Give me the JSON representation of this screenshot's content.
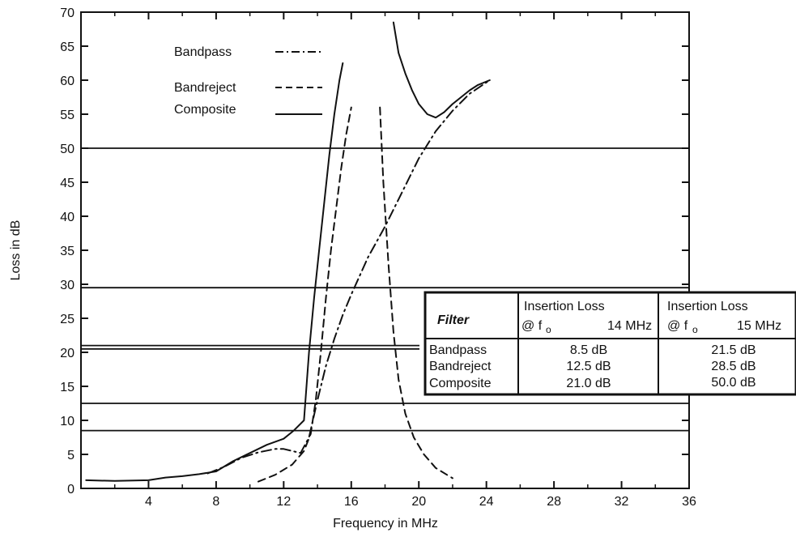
{
  "chart_data": {
    "type": "line",
    "title": "",
    "xlabel": "Frequency in MHz",
    "ylabel": "Loss in dB",
    "xlim": [
      0,
      36
    ],
    "ylim": [
      0,
      70
    ],
    "x_ticks": [
      4,
      8,
      12,
      16,
      20,
      24,
      28,
      32,
      36
    ],
    "y_ticks": [
      0,
      5,
      10,
      15,
      20,
      25,
      30,
      35,
      40,
      45,
      50,
      55,
      60,
      65,
      70
    ],
    "x_tick_labels": [
      "4",
      "8",
      "12",
      "16",
      "20",
      "24",
      "28",
      "32",
      "36"
    ],
    "y_tick_labels": [
      "0",
      "5",
      "10",
      "15",
      "20",
      "25",
      "30",
      "35",
      "40",
      "45",
      "50",
      "55",
      "60",
      "65",
      "70"
    ],
    "grid": false,
    "reference_lines_y": [
      8.5,
      12.5,
      20.5,
      21.0,
      29.5,
      50.0
    ],
    "legend": {
      "placement": "top-left",
      "entries": [
        {
          "label": "Bandpass",
          "style": "dash-dot"
        },
        {
          "label": "Bandreject",
          "style": "dashed"
        },
        {
          "label": "Composite",
          "style": "solid"
        }
      ]
    },
    "series": [
      {
        "name": "Bandpass",
        "style": "dash-dot",
        "x": [
          7.5,
          8.5,
          9.5,
          10.5,
          11.5,
          12,
          12.5,
          13,
          13.5,
          14,
          14.5,
          15,
          15.5,
          16,
          17,
          18,
          19,
          20,
          21,
          22,
          23,
          24.2
        ],
        "y": [
          2.2,
          3.2,
          4.5,
          5.3,
          5.8,
          5.8,
          5.5,
          5.2,
          7.5,
          13,
          18,
          22,
          25.5,
          28.5,
          34,
          38.5,
          43.5,
          48.5,
          52.5,
          55.5,
          58,
          60
        ]
      },
      {
        "name": "Bandreject",
        "style": "dashed",
        "segments": [
          {
            "x": [
              10.5,
              11.5,
              12.5,
              13.2,
              13.6,
              13.9,
              14.2,
              14.5,
              14.8,
              15.1,
              15.4,
              15.7,
              16.0
            ],
            "y": [
              1.0,
              2.0,
              3.5,
              5.5,
              8.0,
              13,
              20,
              28,
              35,
              41,
              47,
              52,
              56
            ]
          },
          {
            "x": [
              17.7,
              17.9,
              18.2,
              18.5,
              18.8,
              19.2,
              19.7,
              20.3,
              21.0,
              22.0
            ],
            "y": [
              56,
              45,
              33,
              23,
              16,
              11,
              7.5,
              5.0,
              3.0,
              1.5
            ]
          }
        ]
      },
      {
        "name": "Composite",
        "style": "solid",
        "segments": [
          {
            "x": [
              0.3,
              2,
              4,
              5,
              6,
              7,
              8,
              9,
              10,
              11,
              12,
              12.6,
              13.2,
              13.5,
              13.8,
              14.1,
              14.4,
              14.7,
              15.0,
              15.3,
              15.5
            ],
            "y": [
              1.2,
              1.1,
              1.2,
              1.6,
              1.8,
              2.1,
              2.5,
              4.0,
              5.2,
              6.4,
              7.3,
              8.5,
              10,
              20,
              28,
              35,
              42,
              49,
              55,
              60,
              62.5
            ]
          },
          {
            "x": [
              18.5,
              18.8,
              19.2,
              19.6,
              20.0,
              20.5,
              21.0,
              21.5,
              22.0,
              22.5,
              23.0,
              23.5,
              24.2
            ],
            "y": [
              68.5,
              64,
              61,
              58.5,
              56.5,
              55.0,
              54.5,
              55.3,
              56.5,
              57.5,
              58.5,
              59.3,
              60
            ]
          }
        ]
      }
    ],
    "table": {
      "header_col0": "Filter",
      "header_col1_line1": "Insertion Loss",
      "header_col1_at": "@ f",
      "header_col1_sub": "o",
      "header_col1_freq": "14 MHz",
      "header_col2_line1": "Insertion Loss",
      "header_col2_at": "@ f",
      "header_col2_sub": "o",
      "header_col2_freq": "15 MHz",
      "rows": [
        {
          "filter": "Bandpass",
          "loss14": "8.5 dB",
          "loss15": "21.5 dB"
        },
        {
          "filter": "Bandreject",
          "loss14": "12.5 dB",
          "loss15": "28.5 dB"
        },
        {
          "filter": "Composite",
          "loss14": "21.0 dB",
          "loss15": "50.0 dB"
        }
      ]
    }
  }
}
